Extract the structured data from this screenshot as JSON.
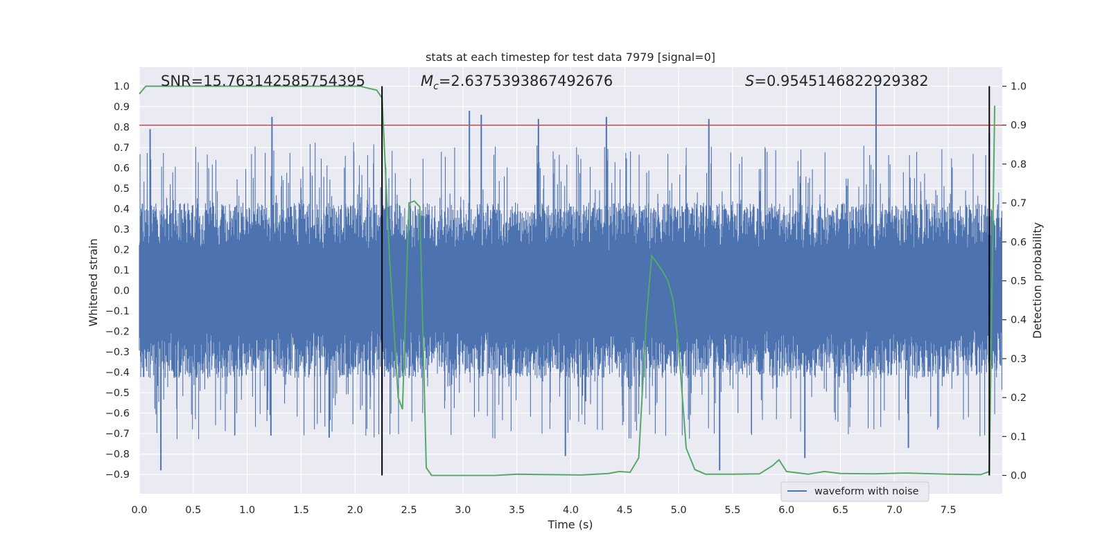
{
  "chart_data": {
    "type": "line",
    "title": "stats at each timestep for test data 7979 [signal=0]",
    "xlabel": "Time (s)",
    "ylabel": "Whitened strain",
    "ylabel_right": "Detection probability",
    "xlim": [
      0.0,
      8.0
    ],
    "ylim_left": [
      -1.0,
      1.0
    ],
    "ylim_right": [
      -0.05,
      1.05
    ],
    "x_ticks": [
      "0.0",
      "0.5",
      "1.0",
      "1.5",
      "2.0",
      "2.5",
      "3.0",
      "3.5",
      "4.0",
      "4.5",
      "5.0",
      "5.5",
      "6.0",
      "6.5",
      "7.0",
      "7.5"
    ],
    "y_ticks_left": [
      "1.0",
      "0.9",
      "0.8",
      "0.7",
      "0.6",
      "0.5",
      "0.4",
      "0.3",
      "0.2",
      "0.1",
      "0.0",
      "-0.1",
      "-0.2",
      "-0.3",
      "-0.4",
      "-0.5",
      "-0.6",
      "-0.7",
      "-0.8",
      "-0.9"
    ],
    "y_ticks_right": [
      "1.0",
      "0.9",
      "0.8",
      "0.7",
      "0.6",
      "0.5",
      "0.4",
      "0.3",
      "0.2",
      "0.1",
      "0.0"
    ],
    "annotations": {
      "snr": "SNR=15.763142585754395",
      "mc_symbol": "M",
      "mc_sub": "c",
      "mc_value": "=2.6375393867492676",
      "s_symbol": "S",
      "s_value": "=0.9545146822929382"
    },
    "threshold_right": 0.9,
    "vertical_lines_x": [
      2.25,
      7.88
    ],
    "legend": [
      "waveform with noise"
    ],
    "legend_position": "lower-right",
    "series": [
      {
        "name": "waveform with noise",
        "color": "#4c72b0",
        "style": "dense noise",
        "approx_bulk_amplitude": 0.43,
        "notable_peaks": [
          {
            "x": 0.2,
            "y": -0.88
          },
          {
            "x": 0.1,
            "y": 0.79
          },
          {
            "x": 1.23,
            "y": 0.85
          },
          {
            "x": 1.22,
            "y": -0.71
          },
          {
            "x": 1.76,
            "y": -0.72
          },
          {
            "x": 2.25,
            "y": -0.55
          },
          {
            "x": 3.06,
            "y": 0.88
          },
          {
            "x": 3.17,
            "y": 0.86
          },
          {
            "x": 3.7,
            "y": 0.84
          },
          {
            "x": 3.95,
            "y": -0.81
          },
          {
            "x": 4.33,
            "y": 0.85
          },
          {
            "x": 5.28,
            "y": 0.84
          },
          {
            "x": 5.38,
            "y": -0.88
          },
          {
            "x": 6.17,
            "y": -0.82
          },
          {
            "x": 6.83,
            "y": 1.0
          },
          {
            "x": 7.13,
            "y": -0.77
          },
          {
            "x": 7.88,
            "y": 0.77
          }
        ]
      },
      {
        "name": "detection probability",
        "color": "#55a868",
        "axis": "right",
        "x": [
          0.0,
          0.06,
          0.2,
          0.6,
          1.0,
          1.4,
          1.8,
          2.05,
          2.12,
          2.2,
          2.25,
          2.32,
          2.4,
          2.44,
          2.5,
          2.55,
          2.6,
          2.66,
          2.71,
          3.0,
          3.3,
          3.5,
          3.8,
          4.1,
          4.35,
          4.45,
          4.55,
          4.63,
          4.7,
          4.75,
          4.85,
          4.9,
          4.95,
          5.0,
          5.07,
          5.15,
          5.25,
          5.5,
          5.75,
          5.87,
          5.93,
          6.0,
          6.2,
          6.35,
          6.5,
          6.8,
          7.1,
          7.5,
          7.8,
          7.88,
          7.93
        ],
        "values": [
          0.98,
          1.0,
          1.0,
          1.0,
          1.0,
          1.0,
          1.0,
          1.0,
          0.995,
          0.99,
          0.97,
          0.56,
          0.2,
          0.17,
          0.7,
          0.705,
          0.69,
          0.02,
          0.0,
          0.0,
          0.0,
          0.003,
          0.002,
          0.001,
          0.005,
          0.01,
          0.008,
          0.045,
          0.4,
          0.565,
          0.525,
          0.5,
          0.45,
          0.33,
          0.07,
          0.015,
          0.003,
          0.003,
          0.004,
          0.025,
          0.04,
          0.01,
          0.003,
          0.01,
          0.005,
          0.004,
          0.006,
          0.003,
          0.002,
          0.01,
          0.95
        ]
      },
      {
        "name": "threshold",
        "color": "#c44e52",
        "axis": "right",
        "value": 0.9
      }
    ]
  }
}
